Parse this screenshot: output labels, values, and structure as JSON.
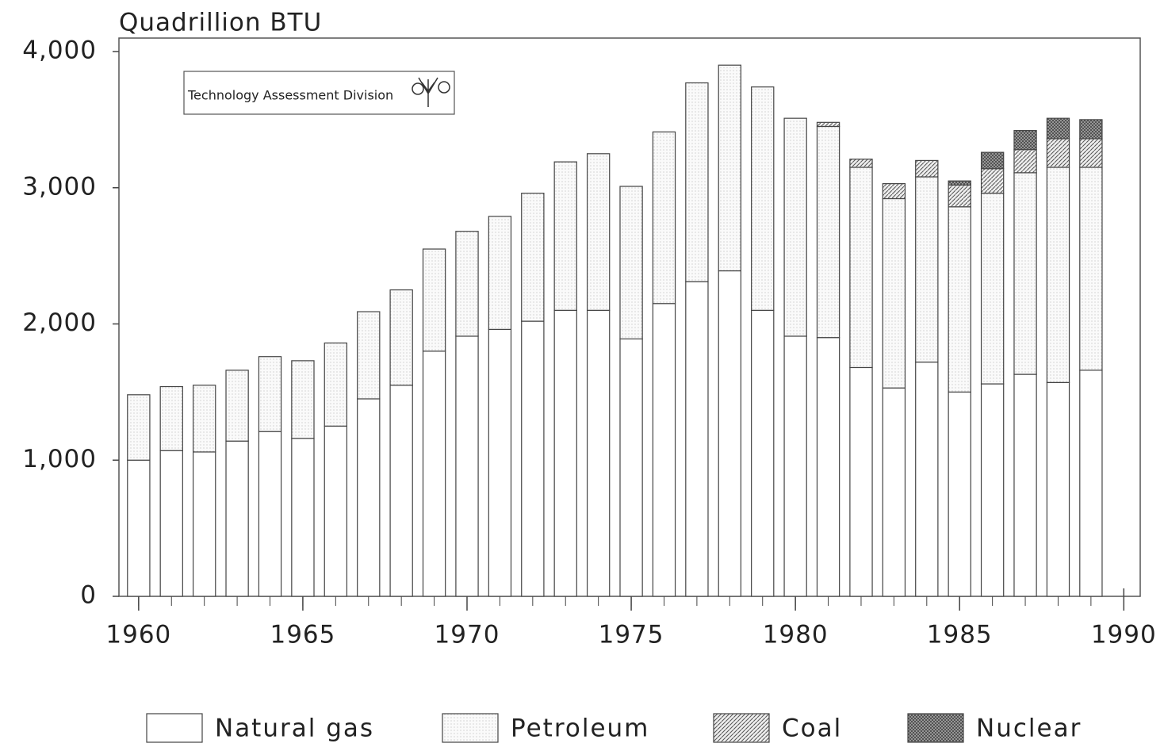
{
  "chart_data": {
    "type": "stacked_bar",
    "y_label": "Quadrillion BTU",
    "annotation": "Technology Assessment Division",
    "x": [
      1960,
      1961,
      1962,
      1963,
      1964,
      1965,
      1966,
      1967,
      1968,
      1969,
      1970,
      1971,
      1972,
      1973,
      1974,
      1975,
      1976,
      1977,
      1978,
      1979,
      1980,
      1981,
      1982,
      1983,
      1984,
      1985,
      1986,
      1987,
      1988,
      1989
    ],
    "series": [
      {
        "name": "Natural gas",
        "color": "#ffffff",
        "pattern": "none",
        "values": [
          1000,
          1070,
          1060,
          1140,
          1210,
          1160,
          1250,
          1450,
          1550,
          1800,
          1910,
          1960,
          2020,
          2100,
          2100,
          1890,
          2150,
          2310,
          2390,
          2100,
          1910,
          1900,
          1680,
          1530,
          1720,
          1500,
          1560,
          1630,
          1570,
          1660
        ]
      },
      {
        "name": "Petroleum",
        "color": "#f4f4f4",
        "pattern": "dots",
        "values": [
          480,
          470,
          490,
          520,
          550,
          570,
          610,
          640,
          700,
          750,
          770,
          830,
          940,
          1090,
          1150,
          1120,
          1260,
          1460,
          1510,
          1640,
          1600,
          1550,
          1470,
          1390,
          1360,
          1360,
          1400,
          1480,
          1580,
          1490
        ]
      },
      {
        "name": "Coal",
        "color": "#d8d8d8",
        "pattern": "hatch",
        "values": [
          0,
          0,
          0,
          0,
          0,
          0,
          0,
          0,
          0,
          0,
          0,
          0,
          0,
          0,
          0,
          0,
          0,
          0,
          0,
          0,
          0,
          30,
          60,
          110,
          120,
          160,
          180,
          170,
          210,
          210
        ]
      },
      {
        "name": "Nuclear",
        "color": "#9a9a9a",
        "pattern": "crosshatch",
        "values": [
          0,
          0,
          0,
          0,
          0,
          0,
          0,
          0,
          0,
          0,
          0,
          0,
          0,
          0,
          0,
          0,
          0,
          0,
          0,
          0,
          0,
          0,
          0,
          0,
          0,
          30,
          120,
          140,
          150,
          140
        ]
      }
    ],
    "xlim": [
      1959.4,
      1990.5
    ],
    "xticks": [
      1960,
      1965,
      1970,
      1975,
      1980,
      1985,
      1990
    ],
    "ylim": [
      0,
      4000
    ],
    "yticks": [
      0,
      {
        "value": 1000,
        "label": "1,000"
      },
      {
        "value": 2000,
        "label": "2,000"
      },
      {
        "value": 3000,
        "label": "3,000"
      },
      {
        "value": 4000,
        "label": "4,000"
      }
    ],
    "grid": false
  }
}
